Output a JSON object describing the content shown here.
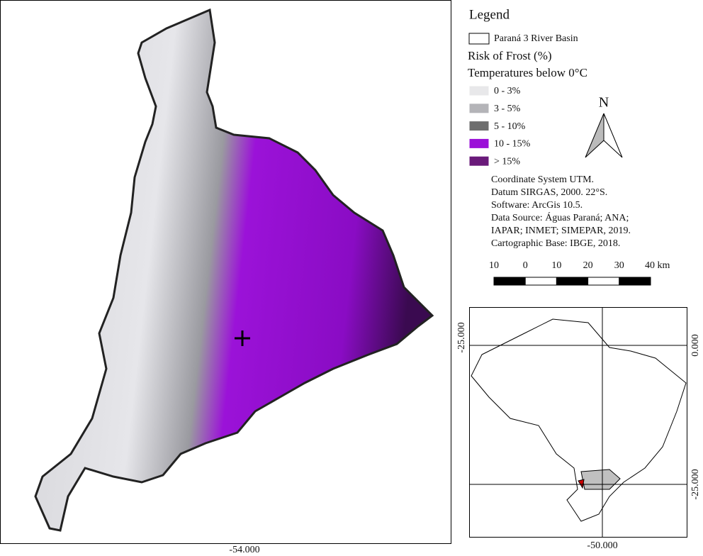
{
  "legend": {
    "title": "Legend",
    "basin": "Paraná 3 River Basin",
    "risk_title": "Risk of Frost (%)",
    "risk_subtitle": "Temperatures below 0°C",
    "classes": [
      {
        "label": "0 - 3%",
        "color": "#e8e8ea"
      },
      {
        "label": "3 - 5%",
        "color": "#b4b4b8"
      },
      {
        "label": "5 - 10%",
        "color": "#6e6e6e"
      },
      {
        "label": "10 - 15%",
        "color": "#9b10d8"
      },
      {
        "label": "> 15%",
        "color": "#6a1a7a"
      }
    ]
  },
  "north": "N",
  "info": [
    "Coordinate System UTM.",
    "Datum SIRGAS, 2000. 22°S.",
    "Software: ArcGis 10.5.",
    "Data Source: Águas Paraná; ANA;",
    "IAPAR; INMET; SIMEPAR, 2019.",
    "Cartographic Base: IBGE, 2018."
  ],
  "scale": [
    "10",
    "0",
    "10",
    "20",
    "30",
    "40 km"
  ],
  "main_map": {
    "longitude": "-54.000"
  },
  "inset": {
    "left_latitude": "-25.000",
    "right_latitude_top": "0.000",
    "right_latitude_bottom": "-25.000",
    "bottom_longitude": "-50.000"
  }
}
